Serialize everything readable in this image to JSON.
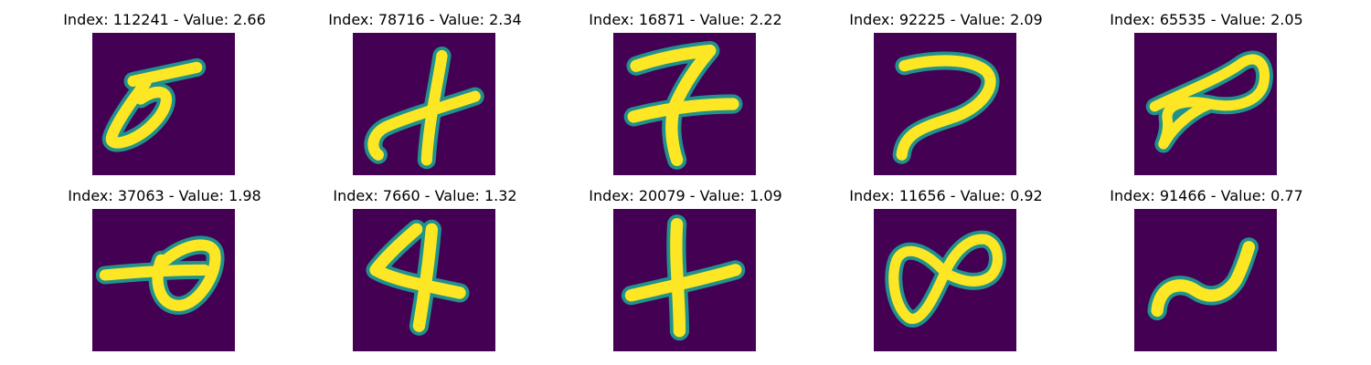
{
  "colors": {
    "background": "#440154",
    "stroke_mid": "#21918c",
    "stroke_core": "#fde725"
  },
  "panels": [
    {
      "title": "Index: 112241 - Value: 2.66",
      "index": 112241,
      "value": 2.66,
      "glyph": "slanted-loop-with-bar"
    },
    {
      "title": "Index: 78716 - Value: 2.34",
      "index": 78716,
      "value": 2.34,
      "glyph": "cross-with-hook"
    },
    {
      "title": "Index: 16871 - Value: 2.22",
      "index": 16871,
      "value": 2.22,
      "glyph": "seven-with-crossbar"
    },
    {
      "title": "Index: 92225 - Value: 2.09",
      "index": 92225,
      "value": 2.09,
      "glyph": "hook-curve"
    },
    {
      "title": "Index: 65535 - Value: 2.05",
      "index": 65535,
      "value": 2.05,
      "glyph": "infinity"
    },
    {
      "title": "Index: 37063 - Value: 1.98",
      "index": 37063,
      "value": 1.98,
      "glyph": "loop-with-bar"
    },
    {
      "title": "Index: 7660 - Value: 1.32",
      "index": 7660,
      "value": 1.32,
      "glyph": "four"
    },
    {
      "title": "Index: 20079 - Value: 1.09",
      "index": 20079,
      "value": 1.09,
      "glyph": "plus"
    },
    {
      "title": "Index: 11656 - Value: 0.92",
      "index": 11656,
      "value": 0.92,
      "glyph": "figure-eight"
    },
    {
      "title": "Index: 91466 - Value: 0.77",
      "index": 91466,
      "value": 0.77,
      "glyph": "tilde-wave"
    }
  ]
}
